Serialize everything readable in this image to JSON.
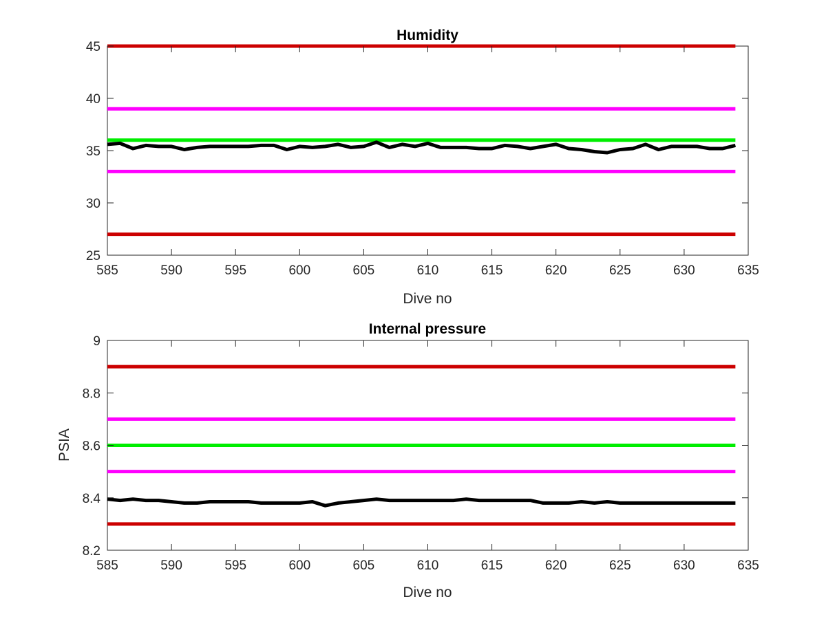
{
  "chart_data": [
    {
      "type": "line",
      "title": "Humidity",
      "xlabel": "Dive no",
      "ylabel": "",
      "xlim": [
        585,
        635
      ],
      "ylim": [
        25,
        45
      ],
      "xticks": [
        "585",
        "590",
        "595",
        "600",
        "605",
        "610",
        "615",
        "620",
        "625",
        "630",
        "635"
      ],
      "yticks": [
        "25",
        "30",
        "35",
        "40",
        "45"
      ],
      "grid": false,
      "thresholds": [
        {
          "value": 45,
          "color": "#cc0000"
        },
        {
          "value": 39,
          "color": "#ff00ff"
        },
        {
          "value": 36,
          "color": "#00ee00"
        },
        {
          "value": 33,
          "color": "#ff00ff"
        },
        {
          "value": 27,
          "color": "#cc0000"
        }
      ],
      "series": [
        {
          "color": "#000000",
          "x": [
            585,
            586,
            587,
            588,
            589,
            590,
            591,
            592,
            593,
            594,
            595,
            596,
            597,
            598,
            599,
            600,
            601,
            602,
            603,
            604,
            605,
            606,
            607,
            608,
            609,
            610,
            611,
            612,
            613,
            614,
            615,
            616,
            617,
            618,
            619,
            620,
            621,
            622,
            623,
            624,
            625,
            626,
            627,
            628,
            629,
            630,
            631,
            632,
            633,
            634
          ],
          "y": [
            35.6,
            35.7,
            35.2,
            35.5,
            35.4,
            35.4,
            35.1,
            35.3,
            35.4,
            35.4,
            35.4,
            35.4,
            35.5,
            35.5,
            35.1,
            35.4,
            35.3,
            35.4,
            35.6,
            35.3,
            35.4,
            35.8,
            35.3,
            35.6,
            35.4,
            35.7,
            35.3,
            35.3,
            35.3,
            35.2,
            35.2,
            35.5,
            35.4,
            35.2,
            35.4,
            35.6,
            35.2,
            35.1,
            34.9,
            34.8,
            35.1,
            35.2,
            35.6,
            35.1,
            35.4,
            35.4,
            35.4,
            35.2,
            35.2,
            35.5
          ]
        }
      ]
    },
    {
      "type": "line",
      "title": "Internal pressure",
      "xlabel": "Dive no",
      "ylabel": "PSIA",
      "xlim": [
        585,
        635
      ],
      "ylim": [
        8.2,
        9
      ],
      "xticks": [
        "585",
        "590",
        "595",
        "600",
        "605",
        "610",
        "615",
        "620",
        "625",
        "630",
        "635"
      ],
      "yticks": [
        "8.2",
        "8.4",
        "8.6",
        "8.8",
        "9"
      ],
      "grid": false,
      "thresholds": [
        {
          "value": 8.9,
          "color": "#cc0000"
        },
        {
          "value": 8.7,
          "color": "#ff00ff"
        },
        {
          "value": 8.6,
          "color": "#00ee00"
        },
        {
          "value": 8.5,
          "color": "#ff00ff"
        },
        {
          "value": 8.3,
          "color": "#cc0000"
        }
      ],
      "series": [
        {
          "color": "#000000",
          "x": [
            585,
            586,
            587,
            588,
            589,
            590,
            591,
            592,
            593,
            594,
            595,
            596,
            597,
            598,
            599,
            600,
            601,
            602,
            603,
            604,
            605,
            606,
            607,
            608,
            609,
            610,
            611,
            612,
            613,
            614,
            615,
            616,
            617,
            618,
            619,
            620,
            621,
            622,
            623,
            624,
            625,
            626,
            627,
            628,
            629,
            630,
            631,
            632,
            633,
            634
          ],
          "y": [
            8.395,
            8.39,
            8.395,
            8.39,
            8.39,
            8.385,
            8.38,
            8.38,
            8.385,
            8.385,
            8.385,
            8.385,
            8.38,
            8.38,
            8.38,
            8.38,
            8.385,
            8.37,
            8.38,
            8.385,
            8.39,
            8.395,
            8.39,
            8.39,
            8.39,
            8.39,
            8.39,
            8.39,
            8.395,
            8.39,
            8.39,
            8.39,
            8.39,
            8.39,
            8.38,
            8.38,
            8.38,
            8.385,
            8.38,
            8.385,
            8.38,
            8.38,
            8.38,
            8.38,
            8.38,
            8.38,
            8.38,
            8.38,
            8.38,
            8.38
          ]
        }
      ]
    }
  ]
}
